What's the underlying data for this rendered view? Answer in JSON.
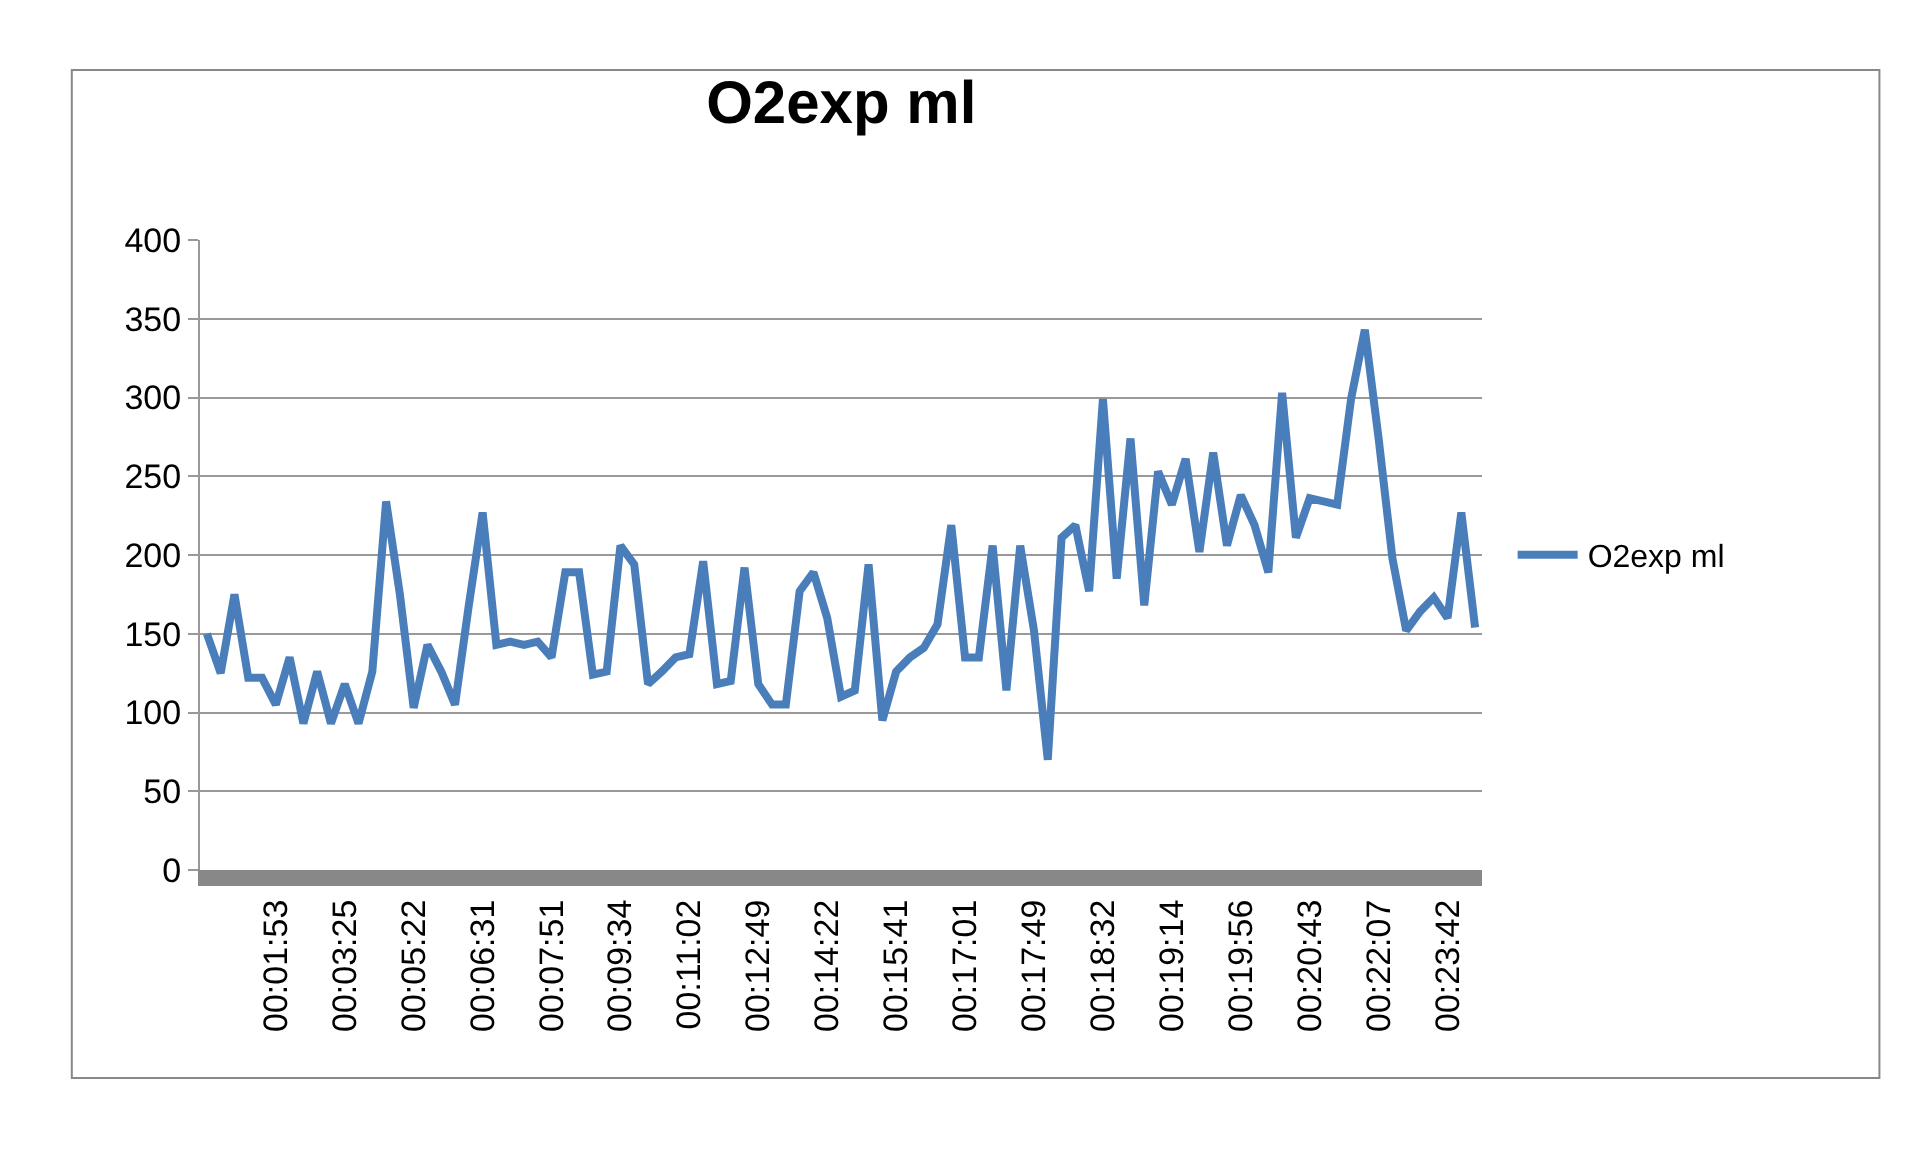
{
  "chart_data": {
    "type": "line",
    "title": "O2exp ml",
    "categories": [
      null,
      null,
      null,
      null,
      null,
      "00:01:53",
      null,
      null,
      null,
      null,
      "00:03:25",
      null,
      null,
      null,
      null,
      "00:05:22",
      null,
      null,
      null,
      null,
      "00:06:31",
      null,
      null,
      null,
      null,
      "00:07:51",
      null,
      null,
      null,
      null,
      "00:09:34",
      null,
      null,
      null,
      null,
      "00:11:02",
      null,
      null,
      null,
      null,
      "00:12:49",
      null,
      null,
      null,
      null,
      "00:14:22",
      null,
      null,
      null,
      null,
      "00:15:41",
      null,
      null,
      null,
      null,
      "00:17:01",
      null,
      null,
      null,
      null,
      "00:17:49",
      null,
      null,
      null,
      null,
      "00:18:32",
      null,
      null,
      null,
      null,
      "00:19:14",
      null,
      null,
      null,
      null,
      "00:19:56",
      null,
      null,
      null,
      null,
      "00:20:43",
      null,
      null,
      null,
      null,
      "00:22:07",
      null,
      null,
      null,
      null,
      "00:23:42",
      null,
      null
    ],
    "series": [
      {
        "name": "O2exp ml",
        "color": "#4a7ebb",
        "values": [
          150,
          125,
          175,
          122,
          122,
          105,
          135,
          93,
          126,
          93,
          118,
          93,
          126,
          234,
          175,
          103,
          143,
          126,
          105,
          168,
          227,
          143,
          145,
          143,
          145,
          135,
          189,
          189,
          124,
          126,
          206,
          194,
          118,
          126,
          135,
          137,
          196,
          118,
          120,
          192,
          118,
          105,
          105,
          177,
          189,
          160,
          110,
          114,
          194,
          95,
          126,
          135,
          141,
          156,
          219,
          135,
          135,
          206,
          114,
          206,
          152,
          70,
          211,
          219,
          177,
          299,
          185,
          274,
          168,
          253,
          232,
          261,
          202,
          265,
          206,
          238,
          219,
          189,
          303,
          211,
          236,
          234,
          232,
          299,
          343,
          274,
          198,
          152,
          164,
          173,
          160,
          227,
          154
        ]
      }
    ],
    "ylim": [
      0,
      400
    ],
    "yticks": [
      0,
      50,
      100,
      150,
      200,
      250,
      300,
      350,
      400
    ],
    "grid": "y",
    "legend": "right",
    "marker": "none",
    "line_style": "solid"
  }
}
